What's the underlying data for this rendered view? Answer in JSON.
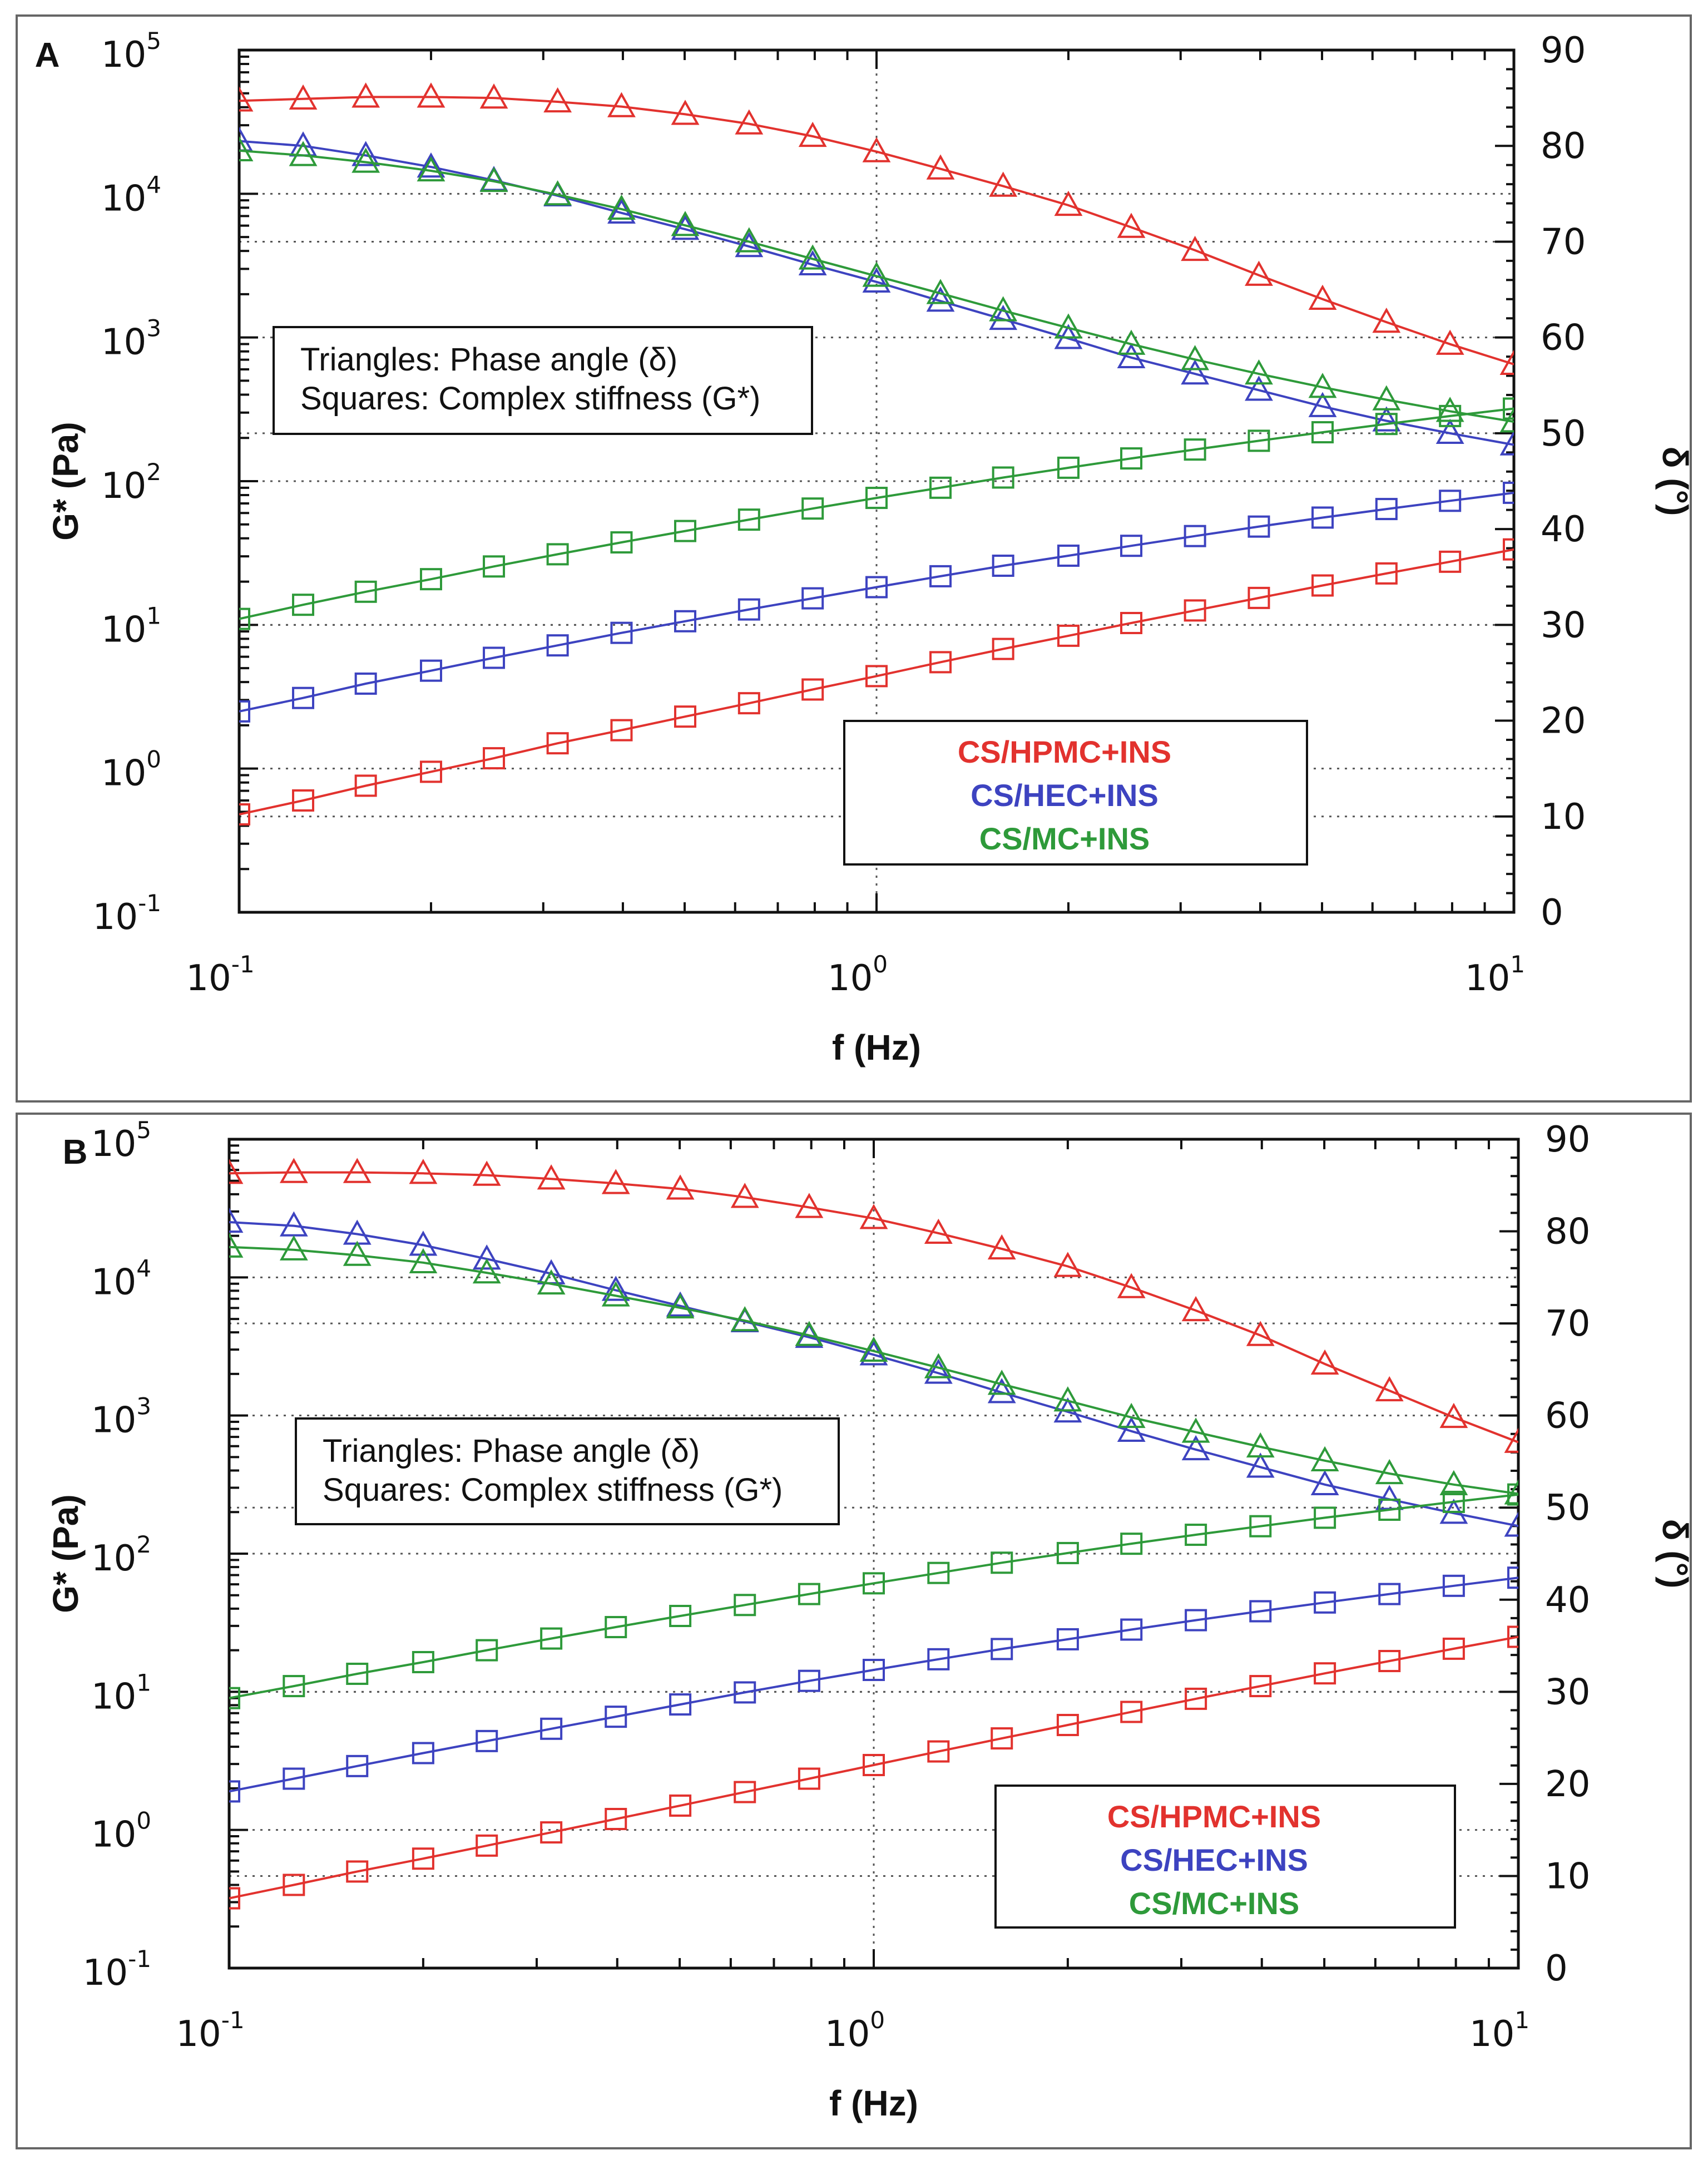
{
  "chart_data": [
    {
      "panel": "A",
      "type": "line",
      "x_axis": {
        "label": "f (Hz)",
        "scale": "log",
        "range": [
          0.1,
          10
        ],
        "ticks": [
          "10^-1",
          "10^0",
          "10^1"
        ]
      },
      "y_left": {
        "label": "G* (Pa)",
        "scale": "log",
        "range": [
          0.1,
          100000
        ],
        "ticks": [
          "10^-1",
          "10^0",
          "10^1",
          "10^2",
          "10^3",
          "10^4",
          "10^5"
        ]
      },
      "y_right": {
        "label": "δ (°)",
        "scale": "linear",
        "range": [
          0,
          90
        ],
        "ticks": [
          "0",
          "10",
          "20",
          "30",
          "40",
          "50",
          "60",
          "70",
          "80",
          "90"
        ]
      },
      "note_lines": [
        "Triangles: Phase angle (δ)",
        "Squares: Complex stiffness (G*)"
      ],
      "legend": [
        "CS/HPMC+INS",
        "CS/HEC+INS",
        "CS/MC+INS"
      ],
      "series": [
        {
          "name": "CS/HPMC+INS",
          "color": "#e2322e",
          "marker": "triangle",
          "axis": "right",
          "quantity": "Phase angle (δ)",
          "x": [
            0.1,
            0.126,
            0.158,
            0.2,
            0.251,
            0.316,
            0.398,
            0.501,
            0.631,
            0.794,
            1.0,
            1.26,
            1.58,
            2.0,
            2.51,
            3.16,
            3.98,
            5.01,
            6.31,
            7.94,
            10
          ],
          "y": [
            84.7,
            84.9,
            85.1,
            85.1,
            85.0,
            84.6,
            84.1,
            83.3,
            82.3,
            81.0,
            79.4,
            77.6,
            75.8,
            73.8,
            71.5,
            69.1,
            66.5,
            64.0,
            61.6,
            59.3,
            57.2
          ]
        },
        {
          "name": "CS/HEC+INS",
          "color": "#3d43c0",
          "marker": "triangle",
          "axis": "right",
          "quantity": "Phase angle (δ)",
          "x": [
            0.1,
            0.126,
            0.158,
            0.2,
            0.251,
            0.316,
            0.398,
            0.501,
            0.631,
            0.794,
            1.0,
            1.26,
            1.58,
            2.0,
            2.51,
            3.16,
            3.98,
            5.01,
            6.31,
            7.94,
            10
          ],
          "y": [
            80.5,
            80.0,
            79.0,
            77.8,
            76.4,
            74.8,
            73.0,
            71.3,
            69.5,
            67.6,
            65.8,
            63.8,
            61.9,
            59.9,
            57.9,
            56.2,
            54.5,
            52.8,
            51.3,
            50.0,
            48.8
          ]
        },
        {
          "name": "CS/MC+INS",
          "color": "#2e9a3a",
          "marker": "triangle",
          "axis": "right",
          "quantity": "Phase angle (δ)",
          "x": [
            0.1,
            0.126,
            0.158,
            0.2,
            0.251,
            0.316,
            0.398,
            0.501,
            0.631,
            0.794,
            1.0,
            1.26,
            1.58,
            2.0,
            2.51,
            3.16,
            3.98,
            5.01,
            6.31,
            7.94,
            10
          ],
          "y": [
            79.5,
            79.0,
            78.3,
            77.4,
            76.3,
            74.9,
            73.4,
            71.7,
            70.0,
            68.2,
            66.4,
            64.6,
            62.8,
            61.0,
            59.3,
            57.7,
            56.2,
            54.8,
            53.5,
            52.3,
            51.2
          ]
        },
        {
          "name": "CS/HPMC+INS",
          "color": "#e2322e",
          "marker": "square",
          "axis": "left",
          "quantity": "Complex stiffness (G*)",
          "x": [
            0.1,
            0.126,
            0.158,
            0.2,
            0.251,
            0.316,
            0.398,
            0.501,
            0.631,
            0.794,
            1.0,
            1.26,
            1.58,
            2.0,
            2.51,
            3.16,
            3.98,
            5.01,
            6.31,
            7.94,
            10
          ],
          "y": [
            0.48,
            0.6,
            0.76,
            0.95,
            1.18,
            1.5,
            1.85,
            2.3,
            2.85,
            3.55,
            4.4,
            5.5,
            6.8,
            8.4,
            10.3,
            12.6,
            15.4,
            18.8,
            22.8,
            27.5,
            33.5
          ]
        },
        {
          "name": "CS/HEC+INS",
          "color": "#3d43c0",
          "marker": "square",
          "axis": "left",
          "quantity": "Complex stiffness (G*)",
          "x": [
            0.1,
            0.126,
            0.158,
            0.2,
            0.251,
            0.316,
            0.398,
            0.501,
            0.631,
            0.794,
            1.0,
            1.26,
            1.58,
            2.0,
            2.51,
            3.16,
            3.98,
            5.01,
            6.31,
            7.94,
            10
          ],
          "y": [
            2.5,
            3.1,
            3.9,
            4.8,
            5.9,
            7.2,
            8.8,
            10.6,
            12.8,
            15.3,
            18.3,
            21.8,
            25.8,
            30.3,
            35.5,
            41.5,
            48.3,
            55.8,
            64.0,
            73.0,
            83.0
          ]
        },
        {
          "name": "CS/MC+INS",
          "color": "#2e9a3a",
          "marker": "square",
          "axis": "left",
          "quantity": "Complex stiffness (G*)",
          "x": [
            0.1,
            0.126,
            0.158,
            0.2,
            0.251,
            0.316,
            0.398,
            0.501,
            0.631,
            0.794,
            1.0,
            1.26,
            1.58,
            2.0,
            2.51,
            3.16,
            3.98,
            5.01,
            6.31,
            7.94,
            10
          ],
          "y": [
            11.0,
            13.8,
            17.0,
            20.8,
            25.5,
            31.0,
            37.5,
            45.0,
            54.0,
            64.5,
            76.5,
            90.0,
            106.0,
            124.0,
            144.0,
            166.0,
            191.0,
            219.0,
            250.0,
            284.0,
            320.0
          ]
        }
      ]
    },
    {
      "panel": "B",
      "type": "line",
      "x_axis": {
        "label": "f (Hz)",
        "scale": "log",
        "range": [
          0.1,
          10
        ],
        "ticks": [
          "10^-1",
          "10^0",
          "10^1"
        ]
      },
      "y_left": {
        "label": "G* (Pa)",
        "scale": "log",
        "range": [
          0.1,
          100000
        ],
        "ticks": [
          "10^-1",
          "10^0",
          "10^1",
          "10^2",
          "10^3",
          "10^4",
          "10^5"
        ]
      },
      "y_right": {
        "label": "δ (°)",
        "scale": "linear",
        "range": [
          0,
          90
        ],
        "ticks": [
          "0",
          "10",
          "20",
          "30",
          "40",
          "50",
          "60",
          "70",
          "80",
          "90"
        ]
      },
      "note_lines": [
        "Triangles: Phase angle (δ)",
        "Squares: Complex stiffness (G*)"
      ],
      "legend": [
        "CS/HPMC+INS",
        "CS/HEC+INS",
        "CS/MC+INS"
      ],
      "series": [
        {
          "name": "CS/HPMC+INS",
          "color": "#e2322e",
          "marker": "triangle",
          "axis": "right",
          "quantity": "Phase angle (δ)",
          "x": [
            0.1,
            0.126,
            0.158,
            0.2,
            0.251,
            0.316,
            0.398,
            0.501,
            0.631,
            0.794,
            1.0,
            1.26,
            1.58,
            2.0,
            2.51,
            3.16,
            3.98,
            5.01,
            6.31,
            7.94,
            10
          ],
          "y": [
            86.3,
            86.4,
            86.4,
            86.3,
            86.1,
            85.7,
            85.2,
            84.6,
            83.7,
            82.6,
            81.4,
            79.8,
            78.1,
            76.2,
            73.9,
            71.4,
            68.7,
            65.6,
            62.7,
            59.8,
            57.1
          ]
        },
        {
          "name": "CS/HEC+INS",
          "color": "#3d43c0",
          "marker": "triangle",
          "axis": "right",
          "quantity": "Phase angle (δ)",
          "x": [
            0.1,
            0.126,
            0.158,
            0.2,
            0.251,
            0.316,
            0.398,
            0.501,
            0.631,
            0.794,
            1.0,
            1.26,
            1.58,
            2.0,
            2.51,
            3.16,
            3.98,
            5.01,
            6.31,
            7.94,
            10
          ],
          "y": [
            81.0,
            80.6,
            79.7,
            78.5,
            77.0,
            75.4,
            73.6,
            71.9,
            70.2,
            68.5,
            66.6,
            64.6,
            62.5,
            60.4,
            58.3,
            56.3,
            54.4,
            52.5,
            50.9,
            49.4,
            48.0
          ]
        },
        {
          "name": "CS/MC+INS",
          "color": "#2e9a3a",
          "marker": "triangle",
          "axis": "right",
          "quantity": "Phase angle (δ)",
          "x": [
            0.1,
            0.126,
            0.158,
            0.2,
            0.251,
            0.316,
            0.398,
            0.501,
            0.631,
            0.794,
            1.0,
            1.26,
            1.58,
            2.0,
            2.51,
            3.16,
            3.98,
            5.01,
            6.31,
            7.94,
            10
          ],
          "y": [
            78.3,
            78.0,
            77.4,
            76.6,
            75.5,
            74.3,
            73.0,
            71.7,
            70.3,
            68.7,
            67.0,
            65.2,
            63.4,
            61.6,
            59.8,
            58.2,
            56.6,
            55.1,
            53.7,
            52.5,
            51.5
          ]
        },
        {
          "name": "CS/HPMC+INS",
          "color": "#e2322e",
          "marker": "square",
          "axis": "left",
          "quantity": "Complex stiffness (G*)",
          "x": [
            0.1,
            0.126,
            0.158,
            0.2,
            0.251,
            0.316,
            0.398,
            0.501,
            0.631,
            0.794,
            1.0,
            1.26,
            1.58,
            2.0,
            2.51,
            3.16,
            3.98,
            5.01,
            6.31,
            7.94,
            10
          ],
          "y": [
            0.32,
            0.4,
            0.5,
            0.62,
            0.77,
            0.96,
            1.2,
            1.5,
            1.88,
            2.35,
            2.95,
            3.7,
            4.6,
            5.75,
            7.15,
            8.9,
            11.0,
            13.6,
            16.7,
            20.5,
            25.0
          ]
        },
        {
          "name": "CS/HEC+INS",
          "color": "#3d43c0",
          "marker": "square",
          "axis": "left",
          "quantity": "Complex stiffness (G*)",
          "x": [
            0.1,
            0.126,
            0.158,
            0.2,
            0.251,
            0.316,
            0.398,
            0.501,
            0.631,
            0.794,
            1.0,
            1.26,
            1.58,
            2.0,
            2.51,
            3.16,
            3.98,
            5.01,
            6.31,
            7.94,
            10
          ],
          "y": [
            1.9,
            2.35,
            2.9,
            3.6,
            4.4,
            5.4,
            6.6,
            8.1,
            9.9,
            12.0,
            14.4,
            17.2,
            20.4,
            24.0,
            28.2,
            33.0,
            38.3,
            44.3,
            51.0,
            58.5,
            67.0
          ]
        },
        {
          "name": "CS/MC+INS",
          "color": "#2e9a3a",
          "marker": "square",
          "axis": "left",
          "quantity": "Complex stiffness (G*)",
          "x": [
            0.1,
            0.126,
            0.158,
            0.2,
            0.251,
            0.316,
            0.398,
            0.501,
            0.631,
            0.794,
            1.0,
            1.26,
            1.58,
            2.0,
            2.51,
            3.16,
            3.98,
            5.01,
            6.31,
            7.94,
            10
          ],
          "y": [
            9.0,
            11.0,
            13.5,
            16.4,
            20.0,
            24.3,
            29.4,
            35.4,
            42.5,
            51.0,
            61.0,
            72.5,
            86.0,
            101.0,
            118.0,
            137.0,
            158.0,
            182.0,
            208.0,
            237.0,
            268.0
          ]
        }
      ]
    }
  ]
}
